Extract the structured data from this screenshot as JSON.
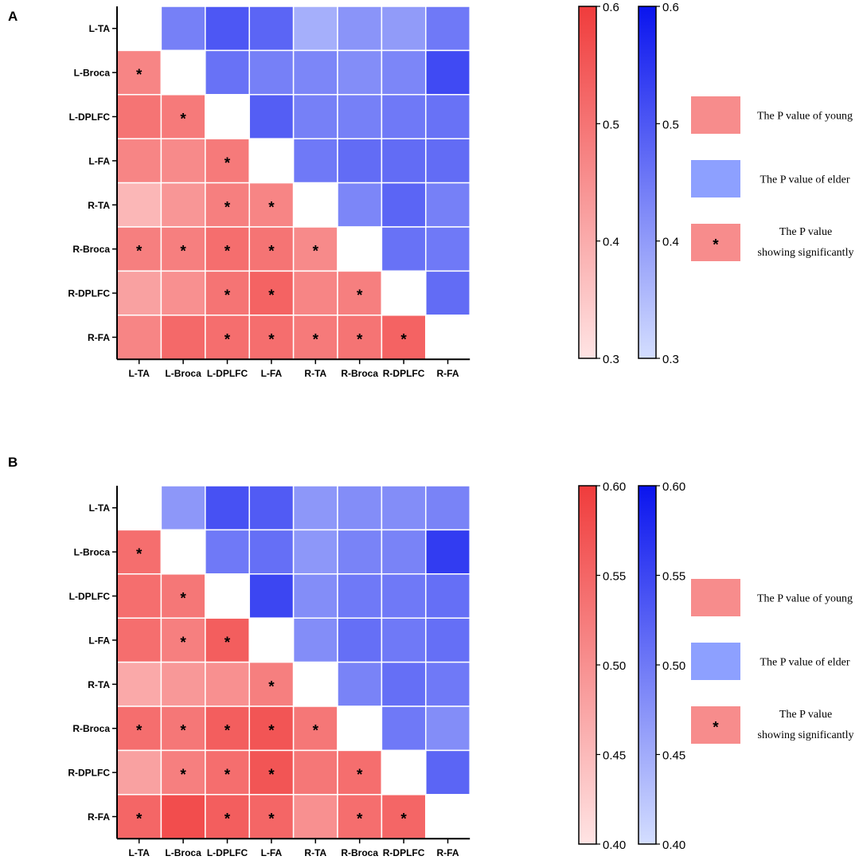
{
  "colors": {
    "young_low": "#ffe4e4",
    "young_high": "#f03c3c",
    "elder_low": "#d4deff",
    "elder_high": "#0a14ee",
    "grid_line": "#ffffff",
    "axis": "#000000"
  },
  "chart_data": [
    {
      "type": "heatmap",
      "panel_label": "A",
      "title": "",
      "rows": [
        "L-TA",
        "L-Broca",
        "L-DPLFC",
        "L-FA",
        "R-TA",
        "R-Broca",
        "R-DPLFC",
        "R-FA"
      ],
      "cols": [
        "L-TA",
        "L-Broca",
        "L-DPLFC",
        "L-FA",
        "R-TA",
        "R-Broca",
        "R-DPLFC",
        "R-FA"
      ],
      "values": [
        [
          null,
          0.44,
          0.5,
          0.48,
          0.37,
          0.41,
          0.4,
          0.45
        ],
        [
          0.47,
          null,
          0.46,
          0.44,
          0.43,
          0.42,
          0.43,
          0.52
        ],
        [
          0.5,
          0.49,
          null,
          0.49,
          0.44,
          0.44,
          0.45,
          0.46
        ],
        [
          0.47,
          0.46,
          0.49,
          null,
          0.45,
          0.47,
          0.47,
          0.47
        ],
        [
          0.38,
          0.44,
          0.48,
          0.47,
          null,
          0.43,
          0.48,
          0.44
        ],
        [
          0.48,
          0.48,
          0.51,
          0.5,
          0.46,
          null,
          0.46,
          0.45
        ],
        [
          0.42,
          0.45,
          0.5,
          0.53,
          0.47,
          0.48,
          null,
          0.47
        ],
        [
          0.47,
          0.52,
          0.51,
          0.51,
          0.49,
          0.5,
          0.53,
          null
        ]
      ],
      "lower_triangle_group": "young",
      "upper_triangle_group": "elder",
      "significant": [
        [
          1,
          0
        ],
        [
          2,
          1
        ],
        [
          3,
          2
        ],
        [
          4,
          2
        ],
        [
          4,
          3
        ],
        [
          5,
          0
        ],
        [
          5,
          1
        ],
        [
          5,
          2
        ],
        [
          5,
          3
        ],
        [
          5,
          4
        ],
        [
          6,
          2
        ],
        [
          6,
          3
        ],
        [
          6,
          5
        ],
        [
          7,
          2
        ],
        [
          7,
          3
        ],
        [
          7,
          4
        ],
        [
          7,
          5
        ],
        [
          7,
          6
        ]
      ],
      "significant_marker": "*",
      "colorbar_young": {
        "range": [
          0.3,
          0.6
        ],
        "ticks": [
          0.3,
          0.4,
          0.5,
          0.6
        ],
        "tick_labels": [
          "0.3",
          "0.4",
          "0.5",
          "0.6"
        ]
      },
      "colorbar_elder": {
        "range": [
          0.3,
          0.6
        ],
        "ticks": [
          0.3,
          0.4,
          0.5,
          0.6
        ],
        "tick_labels": [
          "0.3",
          "0.4",
          "0.5",
          "0.6"
        ]
      },
      "legend": [
        {
          "label": "The P value of young",
          "swatch": "young"
        },
        {
          "label": "The P value of elder",
          "swatch": "elder"
        },
        {
          "label_lines": [
            "The P value",
            "showing significantly"
          ],
          "swatch": "young",
          "marker": "*"
        }
      ]
    },
    {
      "type": "heatmap",
      "panel_label": "B",
      "title": "",
      "rows": [
        "L-TA",
        "L-Broca",
        "L-DPLFC",
        "L-FA",
        "R-TA",
        "R-Broca",
        "R-DPLFC",
        "R-FA"
      ],
      "cols": [
        "L-TA",
        "L-Broca",
        "L-DPLFC",
        "L-FA",
        "R-TA",
        "R-Broca",
        "R-DPLFC",
        "R-FA"
      ],
      "values": [
        [
          null,
          0.47,
          0.54,
          0.53,
          0.47,
          0.48,
          0.48,
          0.49
        ],
        [
          0.54,
          null,
          0.5,
          0.51,
          0.47,
          0.49,
          0.49,
          0.56
        ],
        [
          0.54,
          0.53,
          null,
          0.55,
          0.48,
          0.5,
          0.5,
          0.51
        ],
        [
          0.54,
          0.52,
          0.56,
          null,
          0.48,
          0.51,
          0.5,
          0.51
        ],
        [
          0.47,
          0.49,
          0.5,
          0.52,
          null,
          0.49,
          0.51,
          0.5
        ],
        [
          0.54,
          0.53,
          0.56,
          0.57,
          0.53,
          null,
          0.5,
          0.48
        ],
        [
          0.48,
          0.52,
          0.54,
          0.57,
          0.53,
          0.54,
          null,
          0.52
        ],
        [
          0.55,
          0.58,
          0.56,
          0.55,
          0.5,
          0.54,
          0.55,
          null
        ]
      ],
      "lower_triangle_group": "young",
      "upper_triangle_group": "elder",
      "significant": [
        [
          1,
          0
        ],
        [
          2,
          1
        ],
        [
          3,
          1
        ],
        [
          3,
          2
        ],
        [
          4,
          3
        ],
        [
          5,
          0
        ],
        [
          5,
          1
        ],
        [
          5,
          2
        ],
        [
          5,
          3
        ],
        [
          5,
          4
        ],
        [
          6,
          1
        ],
        [
          6,
          2
        ],
        [
          6,
          3
        ],
        [
          6,
          5
        ],
        [
          7,
          0
        ],
        [
          7,
          2
        ],
        [
          7,
          3
        ],
        [
          7,
          5
        ],
        [
          7,
          6
        ]
      ],
      "significant_marker": "*",
      "colorbar_young": {
        "range": [
          0.4,
          0.6
        ],
        "ticks": [
          0.4,
          0.45,
          0.5,
          0.55,
          0.6
        ],
        "tick_labels": [
          "0.40",
          "0.45",
          "0.50",
          "0.55",
          "0.60"
        ]
      },
      "colorbar_elder": {
        "range": [
          0.4,
          0.6
        ],
        "ticks": [
          0.4,
          0.45,
          0.5,
          0.55,
          0.6
        ],
        "tick_labels": [
          "0.40",
          "0.45",
          "0.50",
          "0.55",
          "0.60"
        ]
      },
      "legend": [
        {
          "label": "The P value of young",
          "swatch": "young"
        },
        {
          "label": "The P value of elder",
          "swatch": "elder"
        },
        {
          "label_lines": [
            "The P value",
            "showing significantly"
          ],
          "swatch": "young",
          "marker": "*"
        }
      ]
    }
  ]
}
